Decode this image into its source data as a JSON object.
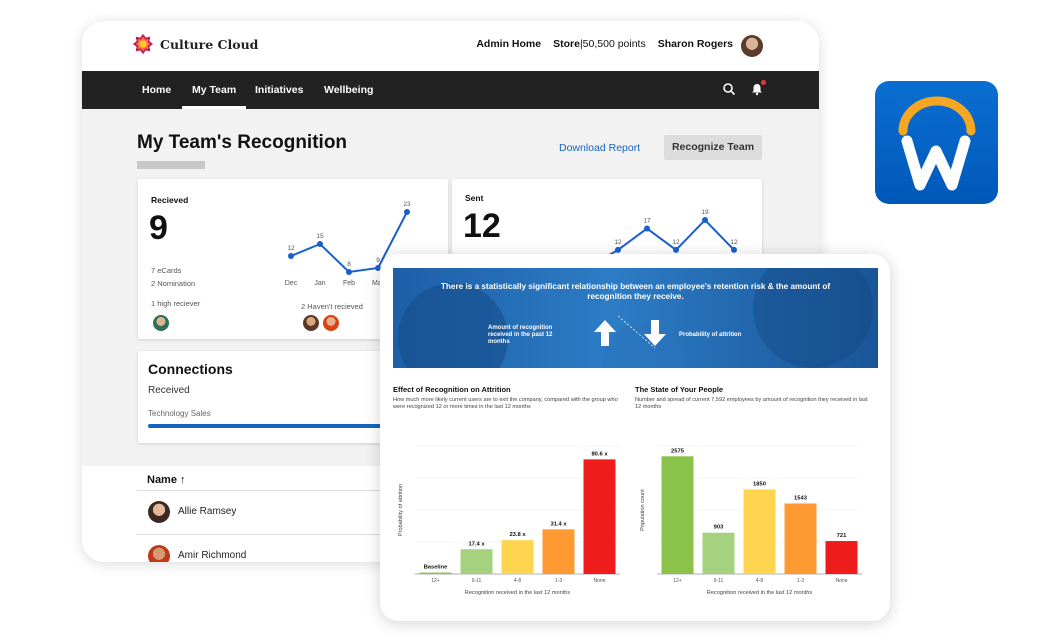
{
  "app": {
    "brand": "Culture Cloud",
    "top_links": {
      "admin": "Admin Home",
      "store": "Store",
      "separator": "|",
      "points": "50,500 points",
      "user": "Sharon Rogers"
    },
    "nav": [
      "Home",
      "My Team",
      "Initiatives",
      "Wellbeing"
    ],
    "page_title": "My Team's Recognition",
    "download_label": "Download Report",
    "recognize_label": "Recognize Team"
  },
  "received_card": {
    "label": "Recieved",
    "count": "9",
    "ecards": "7 eCards",
    "nominations": "2 Nomination",
    "high": "1 high reciever",
    "havent": "2 Haven't recieved",
    "chart_data": {
      "type": "line",
      "categories": [
        "Dec",
        "Jan",
        "Feb",
        "Mar",
        ""
      ],
      "values": [
        12,
        15,
        8,
        9,
        23
      ],
      "color": "#1a5fd0"
    }
  },
  "sent_card": {
    "label": "Sent",
    "count": "12",
    "chart_data": {
      "type": "line",
      "categories": [
        "",
        "",
        "",
        "",
        "",
        ""
      ],
      "values": [
        8,
        12,
        17,
        12,
        19,
        12
      ],
      "color": "#1a5fd0"
    }
  },
  "connections": {
    "title": "Connections",
    "received": "Received",
    "team": "Technology Sales"
  },
  "list": {
    "header": "Name",
    "sort_icon": "↑",
    "rows": [
      "Allie Ramsey",
      "Amir Richmond"
    ]
  },
  "insight": {
    "banner_title": "There is a statistically significant relationship between an employee's retention risk & the amount of recognition they receive.",
    "banner_left": "Amount of recognition received in the past 12 months",
    "banner_right": "Probability of attrition",
    "left_title": "Effect of Recognition on Attrition",
    "left_sub": "How much more likely current users are to exit the company, compared with the group who were recognized 12 or more times in the last 12 months",
    "right_title": "The State of Your People",
    "right_sub": "Number and spread of current 7,592 employees by amount of recognition they received in last 12 months",
    "colors": [
      "#8bc34a",
      "#a5d27e",
      "#ffd54f",
      "#ff9a33",
      "#ef1c1c"
    ]
  },
  "chart_data": [
    {
      "type": "bar",
      "categories": [
        "12+",
        "9-11",
        "4-8",
        "1-3",
        "None"
      ],
      "values": [
        1,
        17.4,
        23.8,
        31.4,
        80.6
      ],
      "labels": [
        "Baseline",
        "17.4 x",
        "23.8 x",
        "31.4 x",
        "80.6 x"
      ],
      "xlabel": "Recognition received in the last 12 months",
      "ylabel": "Probability of attrition",
      "ylim": [
        0,
        90
      ]
    },
    {
      "type": "bar",
      "categories": [
        "12+",
        "9-11",
        "4-8",
        "1-3",
        "None"
      ],
      "values": [
        2575,
        903,
        1850,
        1543,
        721
      ],
      "labels": [
        "2575",
        "903",
        "1850",
        "1543",
        "721"
      ],
      "xlabel": "Recognition received in the last 12 months",
      "ylabel": "Population count",
      "ylim": [
        0,
        2800
      ]
    }
  ]
}
